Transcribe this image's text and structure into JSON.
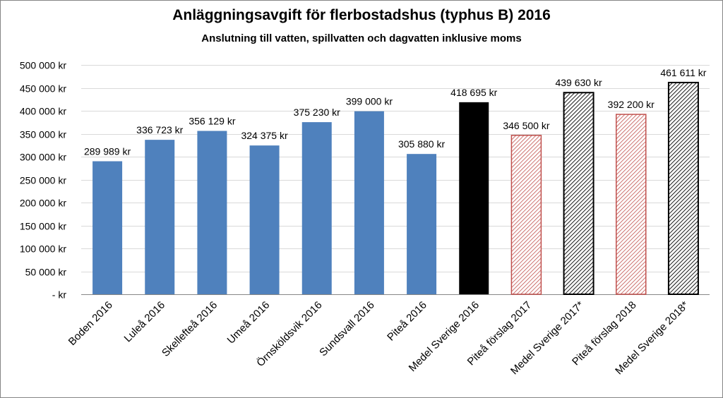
{
  "chart_data": {
    "type": "bar",
    "title": "Anläggningsavgift för flerbostadshus (typhus B) 2016",
    "subtitle": "Anslutning till vatten, spillvatten och dagvatten inklusive moms",
    "xlabel": "",
    "ylabel": "",
    "ylim": [
      0,
      500000
    ],
    "ytick_values": [
      0,
      50000,
      100000,
      150000,
      200000,
      250000,
      300000,
      350000,
      400000,
      450000,
      500000
    ],
    "ytick_labels": [
      "-   kr",
      "50 000 kr",
      "100 000 kr",
      "150 000 kr",
      "200 000 kr",
      "250 000 kr",
      "300 000 kr",
      "350 000 kr",
      "400 000 kr",
      "450 000 kr",
      "500 000 kr"
    ],
    "grid": true,
    "legend": "none",
    "categories": [
      "Boden 2016",
      "Luleå 2016",
      "Skellefteå 2016",
      "Umeå 2016",
      "Örnsköldsvik 2016",
      "Sundsvall 2016",
      "Piteå 2016",
      "Medel Sverige 2016",
      "Piteå förslag 2017",
      "Medel Sverige 2017*",
      "Piteå förslag 2018",
      "Medel Sverige 2018*"
    ],
    "values": [
      289989,
      336723,
      356129,
      324375,
      375230,
      399000,
      305880,
      418695,
      346500,
      439630,
      392200,
      461611
    ],
    "data_labels": [
      "289 989 kr",
      "336 723 kr",
      "356 129 kr",
      "324 375 kr",
      "375 230 kr",
      "399 000 kr",
      "305 880 kr",
      "418 695 kr",
      "346 500 kr",
      "439 630 kr",
      "392 200 kr",
      "461 611 kr"
    ],
    "bar_styles": [
      "blue",
      "blue",
      "blue",
      "blue",
      "blue",
      "blue",
      "blue",
      "black",
      "red-hatch",
      "black-hatch",
      "red-hatch",
      "black-hatch"
    ],
    "colors": {
      "blue": "#4f81bd",
      "black": "#000000",
      "red": "#c0504d",
      "grid": "#d9d9d9",
      "axis": "#868686"
    }
  }
}
